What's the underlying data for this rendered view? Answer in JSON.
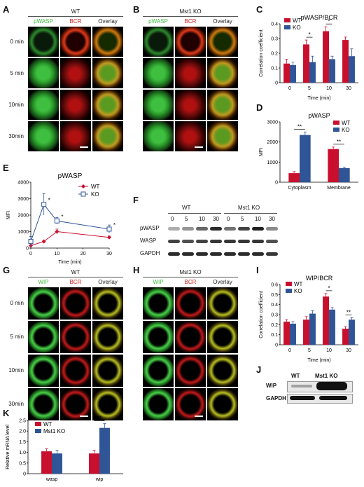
{
  "figure": {
    "panel_letters": [
      "A",
      "B",
      "C",
      "D",
      "E",
      "F",
      "G",
      "H",
      "I",
      "J",
      "K"
    ],
    "microscopy": {
      "A": {
        "group": "WT",
        "channels": [
          "pWASP",
          "BCR",
          "Overlay"
        ],
        "times": [
          "0 min",
          "5 min",
          "10min",
          "30min"
        ]
      },
      "B": {
        "group": "Mst1 KO",
        "channels": [
          "pWASP",
          "BCR",
          "Overlay"
        ]
      },
      "G": {
        "group": "WT",
        "channels": [
          "WIP",
          "BCR",
          "Overlay"
        ],
        "times": [
          "0 min",
          "5 min",
          "10min",
          "30min"
        ]
      },
      "H": {
        "group": "Mst1 KO",
        "channels": [
          "WIP",
          "BCR",
          "Overlay"
        ]
      }
    },
    "blot_F": {
      "groups": [
        "WT",
        "Mst1 KO"
      ],
      "times": [
        "0",
        "5",
        "10",
        "30",
        "0",
        "5",
        "10",
        "30"
      ],
      "rows": [
        "pWASP",
        "WASP",
        "GAPDH"
      ]
    },
    "blot_J": {
      "lanes": [
        "WT",
        "Mst1 KO"
      ],
      "rows": [
        "WIP",
        "GAPDH"
      ]
    },
    "colors": {
      "wt": "#c8102e",
      "ko": "#2f5597",
      "green": "#3fbf3f",
      "red": "#d42020"
    }
  },
  "chart_data": [
    {
      "panel": "C",
      "type": "bar",
      "title": "pWASP/BCR",
      "xlabel": "Time (min)",
      "ylabel": "Correlation coefficient",
      "categories": [
        "0",
        "5",
        "10",
        "30"
      ],
      "ylim": [
        0,
        0.4
      ],
      "yticks": [
        "0",
        "0.1",
        "0.2",
        "0.3",
        "0.4"
      ],
      "series": [
        {
          "name": "WT",
          "values": [
            0.13,
            0.26,
            0.35,
            0.29
          ],
          "errors": [
            0.03,
            0.03,
            0.03,
            0.02
          ]
        },
        {
          "name": "KO",
          "values": [
            0.12,
            0.14,
            0.16,
            0.18
          ],
          "errors": [
            0.02,
            0.04,
            0.02,
            0.05
          ]
        }
      ],
      "sig": [
        "",
        "*",
        "*",
        ""
      ]
    },
    {
      "panel": "D",
      "type": "bar",
      "title": "pWASP",
      "xlabel": "",
      "ylabel": "MFI",
      "categories": [
        "Cytoplasm",
        "Membrane"
      ],
      "ylim": [
        0,
        3000
      ],
      "yticks": [
        "0",
        "1000",
        "2000",
        "3000"
      ],
      "series": [
        {
          "name": "WT",
          "values": [
            450,
            1650
          ],
          "errors": [
            80,
            100
          ]
        },
        {
          "name": "KO",
          "values": [
            2350,
            700
          ],
          "errors": [
            150,
            50
          ]
        }
      ],
      "sig": [
        "**",
        "**"
      ]
    },
    {
      "panel": "E",
      "type": "line",
      "title": "pWASP",
      "xlabel": "Time (min)",
      "ylabel": "MFI",
      "x": [
        0,
        5,
        10,
        30
      ],
      "xlim": [
        0,
        30
      ],
      "xticks": [
        "0",
        "10",
        "20",
        "30"
      ],
      "ylim": [
        0,
        4000
      ],
      "yticks": [
        "0",
        "1000",
        "2000",
        "3000",
        "4000"
      ],
      "series": [
        {
          "name": "WT",
          "values": [
            150,
            400,
            1000,
            650
          ],
          "errors": [
            50,
            60,
            150,
            80
          ]
        },
        {
          "name": "KO",
          "values": [
            400,
            2650,
            1650,
            1150
          ],
          "errors": [
            300,
            650,
            200,
            250
          ]
        }
      ],
      "sig": [
        "",
        "*",
        "*",
        "*"
      ]
    },
    {
      "panel": "I",
      "type": "bar",
      "title": "WIP/BCR",
      "xlabel": "Time (min)",
      "ylabel": "Correlation coefficient",
      "categories": [
        "0",
        "5",
        "10",
        "30"
      ],
      "ylim": [
        0,
        0.6
      ],
      "yticks": [
        "0",
        "0.1",
        "0.2",
        "0.3",
        "0.4",
        "0.5",
        "0.6"
      ],
      "series": [
        {
          "name": "WT",
          "values": [
            0.23,
            0.25,
            0.48,
            0.16
          ],
          "errors": [
            0.02,
            0.03,
            0.03,
            0.02
          ]
        },
        {
          "name": "KO",
          "values": [
            0.21,
            0.31,
            0.35,
            0.25
          ],
          "errors": [
            0.02,
            0.03,
            0.02,
            0.02
          ]
        }
      ],
      "sig": [
        "",
        "",
        "*",
        "**"
      ]
    },
    {
      "panel": "K",
      "type": "bar",
      "title": "",
      "xlabel": "",
      "ylabel": "Relative mRNA level",
      "categories": [
        "wasp",
        "wip"
      ],
      "ylim": [
        0,
        2.5
      ],
      "yticks": [
        "0",
        "0.5",
        "1.0",
        "1.5",
        "2.0",
        "2.5"
      ],
      "series": [
        {
          "name": "WT",
          "values": [
            1.05,
            0.95
          ],
          "errors": [
            0.12,
            0.15
          ]
        },
        {
          "name": "Mst1 KO",
          "values": [
            0.95,
            2.15
          ],
          "errors": [
            0.15,
            0.2
          ]
        }
      ],
      "sig": [
        "",
        "**"
      ]
    }
  ]
}
